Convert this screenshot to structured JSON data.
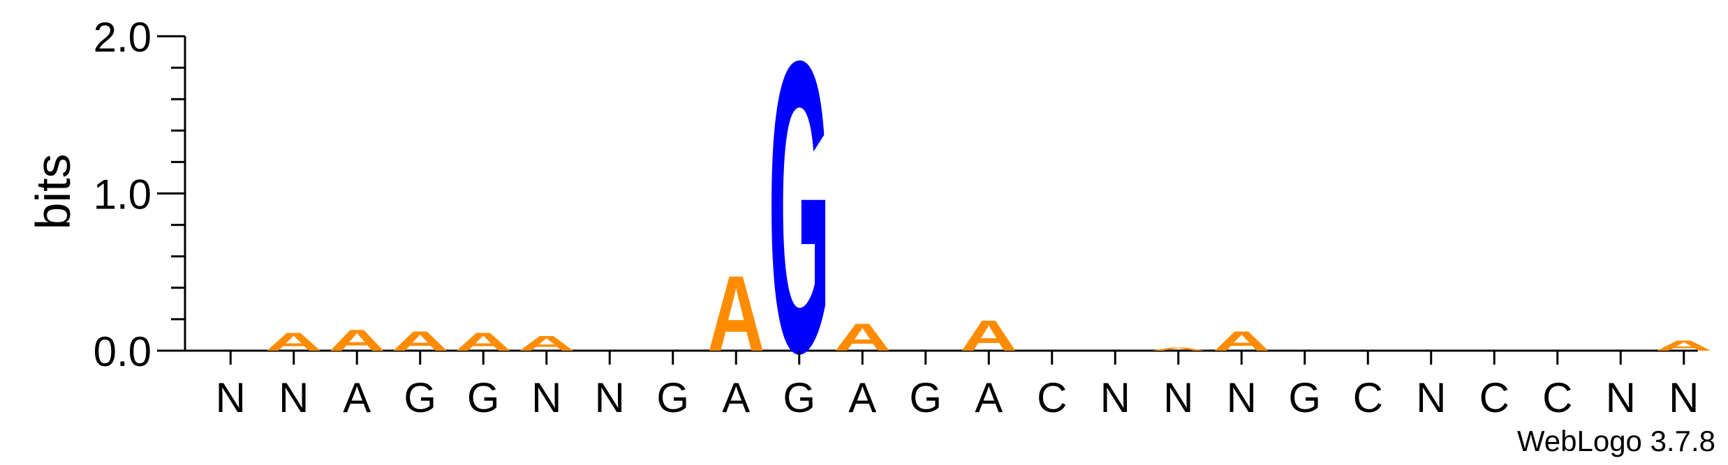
{
  "chart_data": {
    "type": "sequence-logo",
    "ylabel": "bits",
    "ylim": [
      0,
      2.0
    ],
    "yticks": [
      "0.0",
      "1.0",
      "2.0"
    ],
    "positions": [
      "N",
      "N",
      "A",
      "G",
      "G",
      "N",
      "N",
      "G",
      "A",
      "G",
      "A",
      "G",
      "A",
      "C",
      "N",
      "N",
      "N",
      "G",
      "C",
      "N",
      "C",
      "C",
      "N",
      "N"
    ],
    "letter_colors": {
      "A": "#ff8c00",
      "G": "#0000ff",
      "C": "#0000ff",
      "T": "#ff0000"
    },
    "stacks": [
      [],
      [
        {
          "letter": "A",
          "bits": 0.12
        }
      ],
      [
        {
          "letter": "A",
          "bits": 0.14
        }
      ],
      [
        {
          "letter": "A",
          "bits": 0.13
        }
      ],
      [
        {
          "letter": "A",
          "bits": 0.12
        }
      ],
      [
        {
          "letter": "A",
          "bits": 0.1
        }
      ],
      [],
      [],
      [
        {
          "letter": "A",
          "bits": 0.5
        }
      ],
      [
        {
          "letter": "G",
          "bits": 1.93
        }
      ],
      [
        {
          "letter": "A",
          "bits": 0.18
        }
      ],
      [],
      [
        {
          "letter": "A",
          "bits": 0.2
        }
      ],
      [],
      [],
      [
        {
          "letter": "A",
          "bits": 0.02
        }
      ],
      [
        {
          "letter": "A",
          "bits": 0.13
        }
      ],
      [],
      [],
      [],
      [],
      [],
      [],
      [
        {
          "letter": "A",
          "bits": 0.07
        }
      ]
    ]
  },
  "footer": {
    "credit": "WebLogo 3.7.8"
  }
}
